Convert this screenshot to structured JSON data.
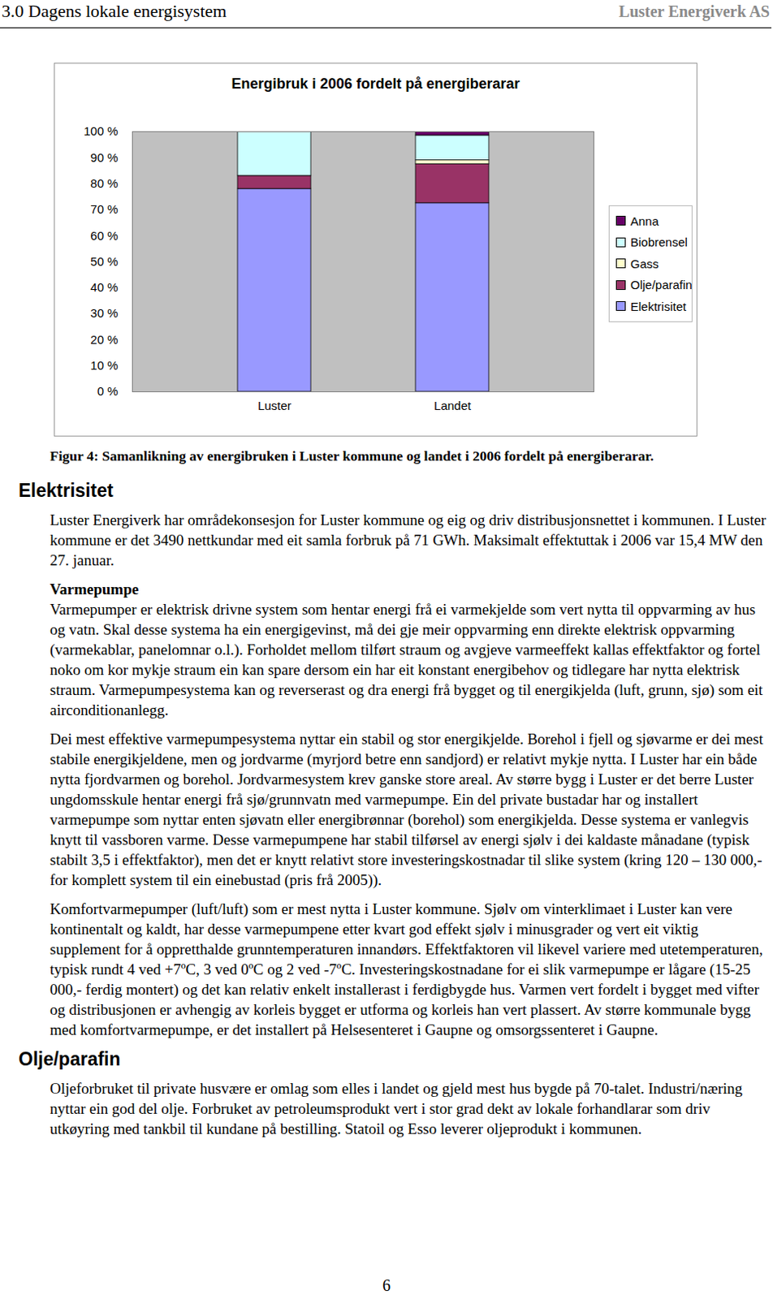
{
  "header": {
    "title": "3.0 Dagens lokale energisystem",
    "company": "Luster Energiverk AS"
  },
  "chart_data": {
    "type": "bar",
    "stacked": true,
    "title": "Energibruk i 2006 fordelt på energiberarar",
    "categories": [
      "Luster",
      "Landet"
    ],
    "series": [
      {
        "name": "Elektrisitet",
        "color": "#9999ff",
        "values": [
          78,
          72.5
        ]
      },
      {
        "name": "Olje/parafin",
        "color": "#993366",
        "values": [
          5,
          15
        ]
      },
      {
        "name": "Gass",
        "color": "#ffffcc",
        "values": [
          0,
          1.5
        ]
      },
      {
        "name": "Biobrensel",
        "color": "#ccffff",
        "values": [
          17,
          9.5
        ]
      },
      {
        "name": "Anna",
        "color": "#660066",
        "values": [
          0,
          1.5
        ]
      }
    ],
    "ylim": [
      0,
      100
    ],
    "yticks": [
      {
        "value": 0,
        "label": "0 %"
      },
      {
        "value": 10,
        "label": "10 %"
      },
      {
        "value": 20,
        "label": "20 %"
      },
      {
        "value": 30,
        "label": "30 %"
      },
      {
        "value": 40,
        "label": "40 %"
      },
      {
        "value": 50,
        "label": "50 %"
      },
      {
        "value": 60,
        "label": "60 %"
      },
      {
        "value": 70,
        "label": "70 %"
      },
      {
        "value": 80,
        "label": "80 %"
      },
      {
        "value": 90,
        "label": "90 %"
      },
      {
        "value": 100,
        "label": "100 %"
      }
    ],
    "grid": false,
    "legend": "right"
  },
  "caption": "Figur 4: Samanlikning av energibruken i Luster kommune og landet i 2006 fordelt på energiberarar.",
  "blocks": [
    {
      "kind": "heading",
      "text": "Elektrisitet"
    },
    {
      "kind": "paragraph",
      "text": "Luster Energiverk har områdekonsesjon for Luster kommune og eig og driv distribusjonsnettet i kommunen. I Luster kommune er det 3490 nettkundar med eit samla forbruk på 71 GWh. Maksimalt effektuttak i 2006 var 15,4 MW den 27. januar."
    },
    {
      "kind": "subheading",
      "text": "Varmepumpe"
    },
    {
      "kind": "paragraph",
      "text": "Varmepumper er elektrisk drivne system som hentar energi frå ei varmekjelde som vert nytta til oppvarming av hus og vatn. Skal desse systema ha ein energigevinst, må dei gje meir oppvarming enn direkte elektrisk oppvarming (varmekablar, panelomnar o.l.). Forholdet mellom tilført straum og avgjeve varmeeffekt kallas effektfaktor og fortel noko om kor mykje straum ein kan spare dersom ein har eit konstant energibehov og tidlegare har nytta elektrisk straum. Varmepumpesystema kan og reverserast og dra energi frå bygget og til energikjelda (luft, grunn, sjø) som eit airconditionanlegg."
    },
    {
      "kind": "paragraph",
      "text": "Dei mest effektive varmepumpesystema nyttar ein stabil og stor energikjelde. Borehol i fjell og sjøvarme er dei mest stabile energikjeldene, men og jordvarme (myrjord betre enn sandjord) er relativt mykje nytta. I Luster har ein både nytta fjordvarmen og borehol. Jordvarmesystem krev ganske store areal. Av større bygg i Luster er det berre Luster ungdomsskule hentar energi frå sjø/grunnvatn med varmepumpe. Ein del private bustadar har og installert varmepumpe som nyttar enten sjøvatn eller energibrønnar (borehol) som energikjelda. Desse systema er vanlegvis knytt til vassboren varme. Desse varmepumpene har stabil tilførsel av energi sjølv i dei kaldaste månadane (typisk stabilt 3,5 i effektfaktor), men det er knytt relativt store investeringskostnadar til slike system (kring 120 – 130 000,- for komplett system til ein einebustad (pris frå 2005))."
    },
    {
      "kind": "paragraph",
      "text": "Komfortvarmepumper (luft/luft) som er mest nytta i Luster kommune. Sjølv om vinterklimaet i Luster kan vere kontinentalt og kaldt, har desse varmepumpene etter kvart god effekt sjølv i minusgrader og vert eit viktig supplement for å oppretthalde grunntemperaturen innandørs. Effektfaktoren vil likevel variere med utetemperaturen, typisk rundt 4 ved +7ºC, 3 ved 0ºC og 2 ved -7ºC. Investeringskostnadane for ei slik varmepumpe er lågare (15-25 000,- ferdig montert) og det kan relativ enkelt installerast i ferdigbygde hus. Varmen vert fordelt i bygget med vifter og distribusjonen er avhengig av korleis bygget er utforma og korleis han vert plassert. Av større kommunale bygg med komfortvarmepumpe, er det installert på Helsesenteret i Gaupne og omsorgssenteret i Gaupne."
    },
    {
      "kind": "heading",
      "text": "Olje/parafin"
    },
    {
      "kind": "paragraph",
      "text": "Oljeforbruket til private husvære er omlag som elles i landet og gjeld mest hus bygde på 70-talet. Industri/næring nyttar ein god del olje. Forbruket av petroleumsprodukt vert i stor grad dekt av lokale forhandlarar som driv utkøyring med tankbil til kundane på bestilling. Statoil og Esso leverer oljeprodukt i kommunen."
    }
  ],
  "page_number": 6
}
